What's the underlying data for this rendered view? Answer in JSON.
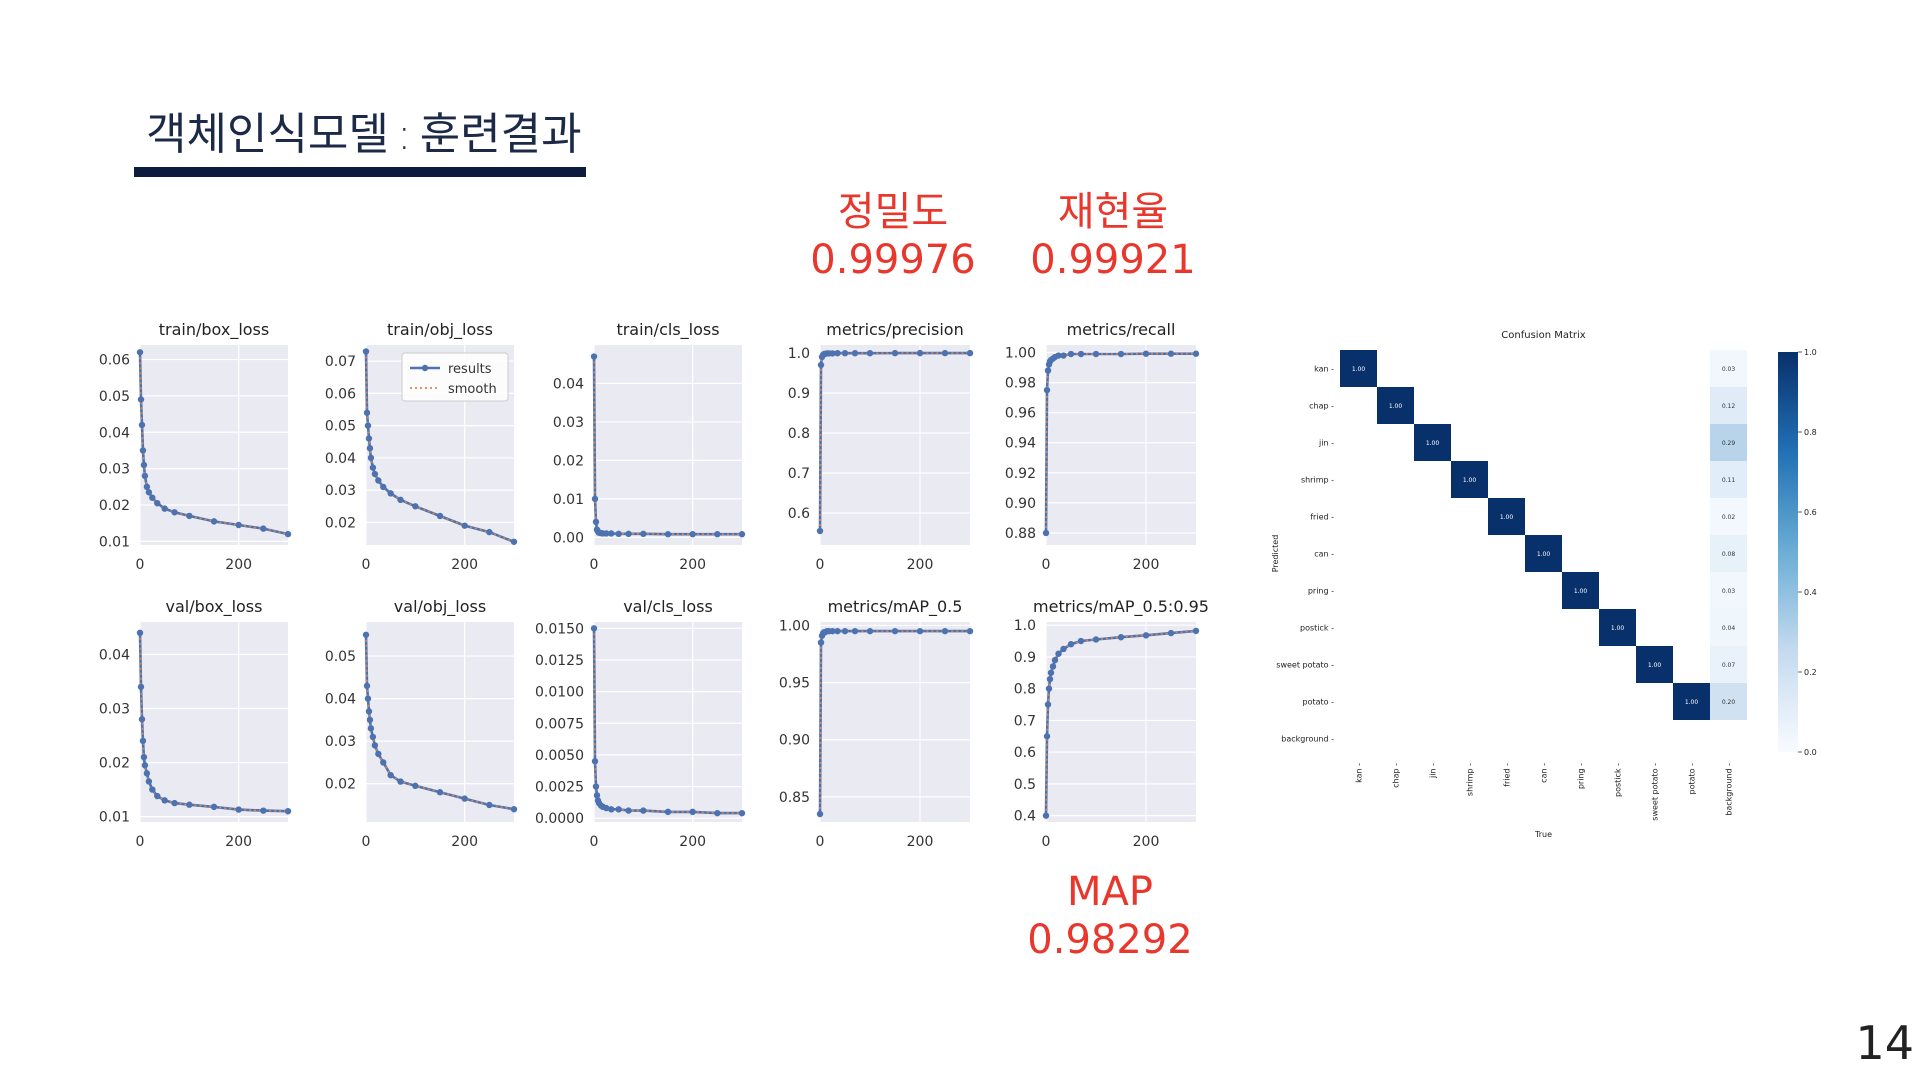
{
  "slide": {
    "title_main": "객체인식모델",
    "title_sep": ":",
    "title_sub": "훈련결과",
    "page_number": "14"
  },
  "callouts": {
    "precision": {
      "label": "정밀도",
      "value": "0.99976"
    },
    "recall": {
      "label": "재현율",
      "value": "0.99921"
    },
    "map": {
      "label": "MAP",
      "value": "0.98292"
    }
  },
  "colors": {
    "accent_red": "#e8372c",
    "title_bar": "#0d1b3e",
    "series_line": "#4c72b0",
    "smooth_line": "#dd8452",
    "plot_bg": "#eaeaf2",
    "cm_dark": "#08306b"
  },
  "chart_data": [
    {
      "type": "line",
      "title": "train/box_loss",
      "xlim": [
        0,
        300
      ],
      "ylim": [
        0.009,
        0.064
      ],
      "xticks": [
        0,
        200
      ],
      "yticks": [
        0.01,
        0.02,
        0.03,
        0.04,
        0.05,
        0.06
      ],
      "ytick_labels": [
        "0.01",
        "0.02",
        "0.03",
        "0.04",
        "0.05",
        "0.06"
      ],
      "series": [
        {
          "name": "results",
          "x": [
            0,
            2,
            4,
            6,
            8,
            10,
            14,
            18,
            25,
            35,
            50,
            70,
            100,
            150,
            200,
            250,
            300
          ],
          "y": [
            0.062,
            0.049,
            0.042,
            0.035,
            0.031,
            0.028,
            0.025,
            0.0235,
            0.022,
            0.0205,
            0.019,
            0.018,
            0.017,
            0.0155,
            0.0145,
            0.0135,
            0.012
          ]
        }
      ],
      "legend": false
    },
    {
      "type": "line",
      "title": "train/obj_loss",
      "xlim": [
        0,
        300
      ],
      "ylim": [
        0.013,
        0.075
      ],
      "xticks": [
        0,
        200
      ],
      "yticks": [
        0.02,
        0.03,
        0.04,
        0.05,
        0.06,
        0.07
      ],
      "ytick_labels": [
        "0.02",
        "0.03",
        "0.04",
        "0.05",
        "0.06",
        "0.07"
      ],
      "series": [
        {
          "name": "results",
          "x": [
            0,
            2,
            4,
            6,
            8,
            10,
            14,
            18,
            25,
            35,
            50,
            70,
            100,
            150,
            200,
            250,
            300
          ],
          "y": [
            0.073,
            0.054,
            0.05,
            0.046,
            0.043,
            0.04,
            0.037,
            0.035,
            0.033,
            0.031,
            0.029,
            0.027,
            0.025,
            0.022,
            0.019,
            0.017,
            0.014
          ]
        }
      ],
      "legend": true,
      "legend_entries": [
        "results",
        "smooth"
      ],
      "legend_loc": "upper right"
    },
    {
      "type": "line",
      "title": "train/cls_loss",
      "xlim": [
        0,
        300
      ],
      "ylim": [
        -0.002,
        0.05
      ],
      "xticks": [
        0,
        200
      ],
      "yticks": [
        0.0,
        0.01,
        0.02,
        0.03,
        0.04
      ],
      "ytick_labels": [
        "0.00",
        "0.01",
        "0.02",
        "0.03",
        "0.04"
      ],
      "series": [
        {
          "name": "results",
          "x": [
            0,
            2,
            4,
            6,
            8,
            10,
            14,
            18,
            25,
            35,
            50,
            70,
            100,
            150,
            200,
            250,
            300
          ],
          "y": [
            0.047,
            0.01,
            0.004,
            0.002,
            0.0015,
            0.0012,
            0.0011,
            0.001,
            0.001,
            0.001,
            0.0009,
            0.0009,
            0.0009,
            0.0008,
            0.0008,
            0.0008,
            0.0008
          ]
        }
      ],
      "legend": false
    },
    {
      "type": "line",
      "title": "metrics/precision",
      "xlim": [
        0,
        300
      ],
      "ylim": [
        0.52,
        1.02
      ],
      "xticks": [
        0,
        200
      ],
      "yticks": [
        0.6,
        0.7,
        0.8,
        0.9,
        1.0
      ],
      "ytick_labels": [
        "0.6",
        "0.7",
        "0.8",
        "0.9",
        "1.0"
      ],
      "series": [
        {
          "name": "results",
          "x": [
            0,
            2,
            4,
            6,
            8,
            10,
            14,
            18,
            25,
            35,
            50,
            70,
            100,
            150,
            200,
            250,
            300
          ],
          "y": [
            0.555,
            0.97,
            0.99,
            0.995,
            0.997,
            0.998,
            0.999,
            0.999,
            0.999,
            0.9995,
            0.9995,
            0.9995,
            0.9995,
            0.9997,
            0.9997,
            0.9998,
            0.9998
          ]
        }
      ],
      "legend": false
    },
    {
      "type": "line",
      "title": "metrics/recall",
      "xlim": [
        0,
        300
      ],
      "ylim": [
        0.872,
        1.005
      ],
      "xticks": [
        0,
        200
      ],
      "yticks": [
        0.88,
        0.9,
        0.92,
        0.94,
        0.96,
        0.98,
        1.0
      ],
      "ytick_labels": [
        "0.88",
        "0.90",
        "0.92",
        "0.94",
        "0.96",
        "0.98",
        "1.00"
      ],
      "series": [
        {
          "name": "results",
          "x": [
            0,
            2,
            4,
            6,
            8,
            10,
            14,
            18,
            25,
            35,
            50,
            70,
            100,
            150,
            200,
            250,
            300
          ],
          "y": [
            0.88,
            0.975,
            0.988,
            0.992,
            0.994,
            0.995,
            0.996,
            0.997,
            0.998,
            0.998,
            0.999,
            0.999,
            0.999,
            0.999,
            0.9992,
            0.9992,
            0.9992
          ]
        }
      ],
      "legend": false
    },
    {
      "type": "line",
      "title": "val/box_loss",
      "xlim": [
        0,
        300
      ],
      "ylim": [
        0.009,
        0.046
      ],
      "xticks": [
        0,
        200
      ],
      "yticks": [
        0.01,
        0.02,
        0.03,
        0.04
      ],
      "ytick_labels": [
        "0.01",
        "0.02",
        "0.03",
        "0.04"
      ],
      "series": [
        {
          "name": "results",
          "x": [
            0,
            2,
            4,
            6,
            8,
            10,
            14,
            18,
            25,
            35,
            50,
            70,
            100,
            150,
            200,
            250,
            300
          ],
          "y": [
            0.044,
            0.034,
            0.028,
            0.024,
            0.021,
            0.0195,
            0.018,
            0.0165,
            0.015,
            0.0138,
            0.013,
            0.0125,
            0.0122,
            0.0118,
            0.0113,
            0.0111,
            0.011
          ]
        }
      ],
      "legend": false
    },
    {
      "type": "line",
      "title": "val/obj_loss",
      "xlim": [
        0,
        300
      ],
      "ylim": [
        0.011,
        0.058
      ],
      "xticks": [
        0,
        200
      ],
      "yticks": [
        0.02,
        0.03,
        0.04,
        0.05
      ],
      "ytick_labels": [
        "0.02",
        "0.03",
        "0.04",
        "0.05"
      ],
      "series": [
        {
          "name": "results",
          "x": [
            0,
            2,
            4,
            6,
            8,
            10,
            14,
            18,
            25,
            35,
            50,
            70,
            100,
            150,
            200,
            250,
            300
          ],
          "y": [
            0.055,
            0.043,
            0.04,
            0.037,
            0.035,
            0.033,
            0.031,
            0.029,
            0.027,
            0.025,
            0.022,
            0.0205,
            0.0195,
            0.018,
            0.0165,
            0.015,
            0.014
          ]
        }
      ],
      "legend": false
    },
    {
      "type": "line",
      "title": "val/cls_loss",
      "xlim": [
        0,
        300
      ],
      "ylim": [
        -0.0003,
        0.0155
      ],
      "xticks": [
        0,
        200
      ],
      "yticks": [
        0.0,
        0.0025,
        0.005,
        0.0075,
        0.01,
        0.0125,
        0.015
      ],
      "ytick_labels": [
        "0.0000",
        "0.0025",
        "0.0050",
        "0.0075",
        "0.0100",
        "0.0125",
        "0.0150"
      ],
      "series": [
        {
          "name": "results",
          "x": [
            0,
            2,
            4,
            6,
            8,
            10,
            14,
            18,
            25,
            35,
            50,
            70,
            100,
            150,
            200,
            250,
            300
          ],
          "y": [
            0.015,
            0.0045,
            0.0025,
            0.0018,
            0.0014,
            0.0012,
            0.001,
            0.0009,
            0.0008,
            0.0007,
            0.0007,
            0.0006,
            0.0006,
            0.0005,
            0.0005,
            0.0004,
            0.0004
          ]
        }
      ],
      "legend": false
    },
    {
      "type": "line",
      "title": "metrics/mAP_0.5",
      "xlim": [
        0,
        300
      ],
      "ylim": [
        0.828,
        1.003
      ],
      "xticks": [
        0,
        200
      ],
      "yticks": [
        0.85,
        0.9,
        0.95,
        1.0
      ],
      "ytick_labels": [
        "0.85",
        "0.90",
        "0.95",
        "1.00"
      ],
      "series": [
        {
          "name": "results",
          "x": [
            0,
            2,
            4,
            6,
            8,
            10,
            14,
            18,
            25,
            35,
            50,
            70,
            100,
            150,
            200,
            250,
            300
          ],
          "y": [
            0.835,
            0.985,
            0.991,
            0.993,
            0.994,
            0.994,
            0.995,
            0.995,
            0.995,
            0.995,
            0.995,
            0.995,
            0.995,
            0.995,
            0.995,
            0.995,
            0.995
          ]
        }
      ],
      "legend": false
    },
    {
      "type": "line",
      "title": "metrics/mAP_0.5:0.95",
      "xlim": [
        0,
        300
      ],
      "ylim": [
        0.38,
        1.01
      ],
      "xticks": [
        0,
        200
      ],
      "yticks": [
        0.4,
        0.5,
        0.6,
        0.7,
        0.8,
        0.9,
        1.0
      ],
      "ytick_labels": [
        "0.4",
        "0.5",
        "0.6",
        "0.7",
        "0.8",
        "0.9",
        "1.0"
      ],
      "series": [
        {
          "name": "results",
          "x": [
            0,
            2,
            4,
            6,
            8,
            10,
            14,
            18,
            25,
            35,
            50,
            70,
            100,
            150,
            200,
            250,
            300
          ],
          "y": [
            0.4,
            0.65,
            0.75,
            0.8,
            0.83,
            0.85,
            0.87,
            0.89,
            0.91,
            0.925,
            0.94,
            0.95,
            0.955,
            0.962,
            0.968,
            0.975,
            0.982
          ]
        }
      ],
      "legend": false
    },
    {
      "type": "heatmap",
      "title": "Confusion Matrix",
      "xlabel": "True",
      "ylabel": "Predicted",
      "rows": [
        "kan",
        "chap",
        "jin",
        "shrimp",
        "fried",
        "can",
        "pring",
        "postick",
        "sweet potato",
        "potato",
        "background"
      ],
      "cols": [
        "kan",
        "chap",
        "jin",
        "shrimp",
        "fried",
        "can",
        "pring",
        "postick",
        "sweet potato",
        "potato",
        "background"
      ],
      "diagonal": [
        1.0,
        1.0,
        1.0,
        1.0,
        1.0,
        1.0,
        1.0,
        1.0,
        1.0,
        1.0
      ],
      "diagonal_labels": [
        "1.00",
        "1.00",
        "1.00",
        "1.00",
        "1.00",
        "1.00",
        "1.00",
        "1.00",
        "1.00",
        "1.00"
      ],
      "background_col": [
        0.03,
        0.12,
        0.29,
        0.11,
        0.02,
        0.08,
        0.03,
        0.04,
        0.07,
        0.2
      ],
      "background_col_labels": [
        "0.03",
        "0.12",
        "0.29",
        "0.11",
        "0.02",
        "0.08",
        "0.03",
        "0.04",
        "0.07",
        "0.20"
      ],
      "colorbar_ticks": [
        0.0,
        0.2,
        0.4,
        0.6,
        0.8,
        1.0
      ],
      "colorbar_labels": [
        "0.0",
        "0.2",
        "0.4",
        "0.6",
        "0.8",
        "1.0"
      ]
    }
  ]
}
